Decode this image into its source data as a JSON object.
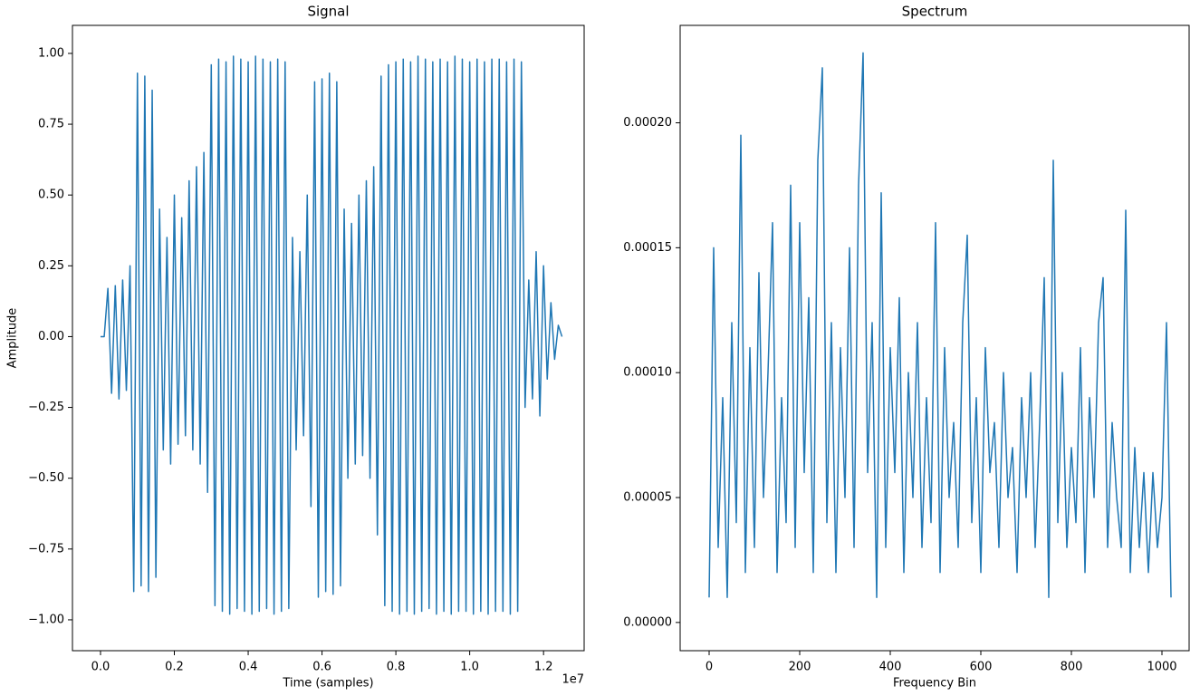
{
  "chart_data": [
    {
      "type": "line",
      "title": "Signal",
      "x_label": "Time (samples)",
      "y_label": "Amplitude",
      "x_offset_label": "1e7",
      "x": [
        0,
        100000,
        200000,
        300000,
        400000,
        500000,
        600000,
        700000,
        800000,
        900000,
        1000000,
        1100000,
        1200000,
        1300000,
        1400000,
        1500000,
        1600000,
        1700000,
        1800000,
        1900000,
        2000000,
        2100000,
        2200000,
        2300000,
        2400000,
        2500000,
        2600000,
        2700000,
        2800000,
        2900000,
        3000000,
        3100000,
        3200000,
        3300000,
        3400000,
        3500000,
        3600000,
        3700000,
        3800000,
        3900000,
        4000000,
        4100000,
        4200000,
        4300000,
        4400000,
        4500000,
        4600000,
        4700000,
        4800000,
        4900000,
        5000000,
        5100000,
        5200000,
        5300000,
        5400000,
        5500000,
        5600000,
        5700000,
        5800000,
        5900000,
        6000000,
        6100000,
        6200000,
        6300000,
        6400000,
        6500000,
        6600000,
        6700000,
        6800000,
        6900000,
        7000000,
        7100000,
        7200000,
        7300000,
        7400000,
        7500000,
        7600000,
        7700000,
        7800000,
        7900000,
        8000000,
        8100000,
        8200000,
        8300000,
        8400000,
        8500000,
        8600000,
        8700000,
        8800000,
        8900000,
        9000000,
        9100000,
        9200000,
        9300000,
        9400000,
        9500000,
        9600000,
        9700000,
        9800000,
        9900000,
        10000000,
        10100000,
        10200000,
        10300000,
        10400000,
        10500000,
        10600000,
        10700000,
        10800000,
        10900000,
        11000000,
        11100000,
        11200000,
        11300000,
        11400000,
        11500000,
        11600000,
        11700000,
        11800000,
        11900000,
        12000000,
        12100000,
        12200000,
        12300000,
        12400000,
        12500000
      ],
      "series": [
        {
          "name": "Signal",
          "color": "#1f77b4",
          "values": [
            0,
            0,
            0.17,
            -0.2,
            0.18,
            -0.22,
            0.2,
            -0.19,
            0.25,
            -0.9,
            0.93,
            -0.88,
            0.92,
            -0.9,
            0.87,
            -0.85,
            0.45,
            -0.4,
            0.35,
            -0.45,
            0.5,
            -0.38,
            0.42,
            -0.35,
            0.55,
            -0.4,
            0.6,
            -0.45,
            0.65,
            -0.55,
            0.96,
            -0.95,
            0.98,
            -0.97,
            0.97,
            -0.98,
            0.99,
            -0.96,
            0.98,
            -0.97,
            0.97,
            -0.98,
            0.99,
            -0.97,
            0.98,
            -0.96,
            0.97,
            -0.98,
            0.98,
            -0.97,
            0.97,
            -0.96,
            0.35,
            -0.4,
            0.3,
            -0.35,
            0.5,
            -0.6,
            0.9,
            -0.92,
            0.91,
            -0.9,
            0.93,
            -0.91,
            0.9,
            -0.88,
            0.45,
            -0.5,
            0.4,
            -0.45,
            0.5,
            -0.42,
            0.55,
            -0.5,
            0.6,
            -0.7,
            0.92,
            -0.95,
            0.96,
            -0.97,
            0.97,
            -0.98,
            0.98,
            -0.97,
            0.97,
            -0.98,
            0.99,
            -0.97,
            0.98,
            -0.96,
            0.97,
            -0.98,
            0.98,
            -0.97,
            0.97,
            -0.98,
            0.99,
            -0.97,
            0.98,
            -0.97,
            0.97,
            -0.98,
            0.98,
            -0.97,
            0.97,
            -0.98,
            0.98,
            -0.97,
            0.98,
            -0.97,
            0.97,
            -0.98,
            0.98,
            -0.97,
            0.97,
            -0.25,
            0.2,
            -0.22,
            0.3,
            -0.28,
            0.25,
            -0.15,
            0.12,
            -0.08,
            0.04,
            0
          ]
        }
      ],
      "xlim": [
        -760000,
        13100000
      ],
      "xticks": [
        {
          "value": 0,
          "label": "0.0"
        },
        {
          "value": 2000000,
          "label": "0.2"
        },
        {
          "value": 4000000,
          "label": "0.4"
        },
        {
          "value": 6000000,
          "label": "0.6"
        },
        {
          "value": 8000000,
          "label": "0.8"
        },
        {
          "value": 10000000,
          "label": "1.0"
        },
        {
          "value": 12000000,
          "label": "1.2"
        }
      ],
      "ylim": [
        -1.109,
        1.099
      ],
      "yticks": [
        {
          "value": -1,
          "label": "−1.00"
        },
        {
          "value": -0.75,
          "label": "−0.75"
        },
        {
          "value": -0.5,
          "label": "−0.50"
        },
        {
          "value": -0.25,
          "label": "−0.25"
        },
        {
          "value": 0,
          "label": "0.00"
        },
        {
          "value": 0.25,
          "label": "0.25"
        },
        {
          "value": 0.5,
          "label": "0.50"
        },
        {
          "value": 0.75,
          "label": "0.75"
        },
        {
          "value": 1,
          "label": "1.00"
        }
      ]
    },
    {
      "type": "line",
      "title": "Spectrum",
      "x_label": "Frequency Bin",
      "x": [
        0,
        10,
        20,
        30,
        40,
        50,
        60,
        70,
        80,
        90,
        100,
        110,
        120,
        130,
        140,
        150,
        160,
        170,
        180,
        190,
        200,
        210,
        220,
        230,
        240,
        250,
        260,
        270,
        280,
        290,
        300,
        310,
        320,
        330,
        340,
        350,
        360,
        370,
        380,
        390,
        400,
        410,
        420,
        430,
        440,
        450,
        460,
        470,
        480,
        490,
        500,
        510,
        520,
        530,
        540,
        550,
        560,
        570,
        580,
        590,
        600,
        610,
        620,
        630,
        640,
        650,
        660,
        670,
        680,
        690,
        700,
        710,
        720,
        730,
        740,
        750,
        760,
        770,
        780,
        790,
        800,
        810,
        820,
        830,
        840,
        850,
        860,
        870,
        880,
        890,
        900,
        910,
        920,
        930,
        940,
        950,
        960,
        970,
        980,
        990,
        1000,
        1010,
        1020
      ],
      "series": [
        {
          "name": "Spectrum",
          "color": "#1f77b4",
          "values": [
            1e-05,
            0.00015,
            3e-05,
            9e-05,
            1e-05,
            0.00012,
            4e-05,
            0.000195,
            2e-05,
            0.00011,
            3e-05,
            0.00014,
            5e-05,
            0.0001,
            0.00016,
            2e-05,
            9e-05,
            4e-05,
            0.000175,
            3e-05,
            0.00016,
            6e-05,
            0.00013,
            2e-05,
            0.000185,
            0.000222,
            4e-05,
            0.00012,
            2e-05,
            0.00011,
            5e-05,
            0.00015,
            3e-05,
            0.000175,
            0.000228,
            6e-05,
            0.00012,
            1e-05,
            0.000172,
            3e-05,
            0.00011,
            6e-05,
            0.00013,
            2e-05,
            0.0001,
            5e-05,
            0.00012,
            3e-05,
            9e-05,
            4e-05,
            0.00016,
            2e-05,
            0.00011,
            5e-05,
            8e-05,
            3e-05,
            0.00012,
            0.000155,
            4e-05,
            9e-05,
            2e-05,
            0.00011,
            6e-05,
            8e-05,
            3e-05,
            0.0001,
            5e-05,
            7e-05,
            2e-05,
            9e-05,
            5e-05,
            0.0001,
            3e-05,
            8e-05,
            0.000138,
            1e-05,
            0.000185,
            4e-05,
            0.0001,
            3e-05,
            7e-05,
            4e-05,
            0.00011,
            2e-05,
            9e-05,
            5e-05,
            0.00012,
            0.000138,
            3e-05,
            8e-05,
            5e-05,
            3e-05,
            0.000165,
            2e-05,
            7e-05,
            3e-05,
            6e-05,
            2e-05,
            6e-05,
            3e-05,
            5e-05,
            0.00012,
            1e-05
          ]
        }
      ],
      "xlim": [
        -64,
        1060
      ],
      "xticks": [
        0,
        200,
        400,
        600,
        800,
        1000
      ],
      "ylim": [
        -1.13e-05,
        0.000239
      ],
      "yticks": [
        {
          "value": 0,
          "label": "0.00000"
        },
        {
          "value": 5e-05,
          "label": "0.00005"
        },
        {
          "value": 0.0001,
          "label": "0.00010"
        },
        {
          "value": 0.00015,
          "label": "0.00015"
        },
        {
          "value": 0.0002,
          "label": "0.00020"
        }
      ]
    }
  ]
}
